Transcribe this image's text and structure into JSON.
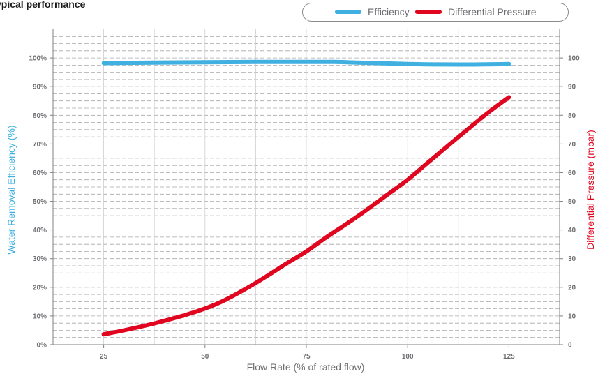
{
  "page": {
    "title": "ypical performance"
  },
  "legend": {
    "efficiency": {
      "label": "Efficiency",
      "color": "#3fb0e0"
    },
    "pressure": {
      "label": "Differential Pressure",
      "color": "#e0061f"
    }
  },
  "chart_data": {
    "type": "line",
    "title": "ypical performance",
    "xlabel": "Flow Rate (% of rated flow)",
    "ylabel_left": "Water Removal Efficiency (%)",
    "ylabel_right": "Differential Pressure (mbar)",
    "xlim": [
      12.5,
      137.5
    ],
    "x_ticks": [
      25,
      50,
      75,
      100,
      125
    ],
    "x_tick_labels": [
      "25",
      "50",
      "75",
      "100",
      "125"
    ],
    "ylim_left": [
      0,
      110
    ],
    "y_left_ticks": [
      0,
      10,
      20,
      30,
      40,
      50,
      60,
      70,
      80,
      90,
      100
    ],
    "y_left_tick_labels": [
      "0%",
      "10%",
      "20%",
      "30%",
      "40%",
      "50%",
      "60%",
      "70%",
      "80%",
      "90%",
      "100%"
    ],
    "ylim_right": [
      0,
      110
    ],
    "y_right_ticks": [
      0,
      10,
      20,
      30,
      40,
      50,
      60,
      70,
      80,
      90,
      100
    ],
    "y_right_tick_labels": [
      "0",
      "10",
      "20",
      "30",
      "40",
      "50",
      "60",
      "70",
      "80",
      "90",
      "100"
    ],
    "grid": true,
    "legend_position": "top-right",
    "series": [
      {
        "name": "Efficiency",
        "axis": "left",
        "color": "#3fb0e0",
        "x": [
          25,
          37.5,
          50,
          62.5,
          75,
          82,
          87.5,
          100,
          112.5,
          125
        ],
        "y": [
          98.2,
          98.4,
          98.5,
          98.6,
          98.6,
          98.6,
          98.4,
          97.9,
          97.7,
          97.9
        ]
      },
      {
        "name": "Differential Pressure",
        "axis": "right",
        "color": "#e0061f",
        "x": [
          25,
          30,
          37.5,
          45,
          50,
          55,
          62.5,
          70,
          75,
          80,
          87.5,
          95,
          100,
          105,
          112.5,
          120,
          125
        ],
        "y": [
          3.6,
          5.0,
          7.4,
          10.3,
          12.6,
          15.6,
          21.5,
          28.2,
          32.5,
          37.5,
          44.6,
          52.3,
          57.5,
          63.5,
          72.4,
          81.1,
          86.3
        ]
      }
    ]
  }
}
